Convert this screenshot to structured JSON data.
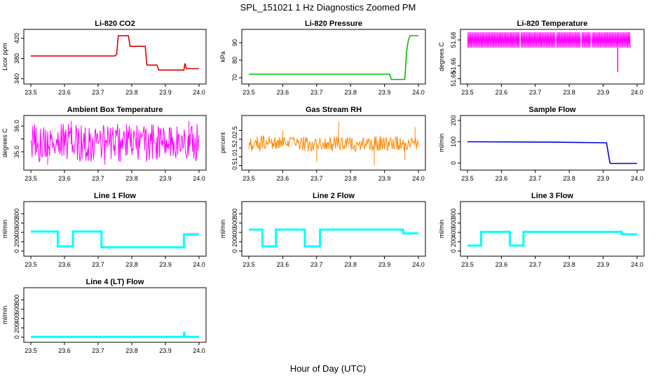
{
  "figure": {
    "title": "SPL_151021  1 Hz Diagnostics Zoomed PM",
    "xlabel": "Hour of Day (UTC)"
  },
  "chart_data": [
    {
      "type": "line",
      "title": "Li-820 CO2",
      "ylabel": "Licor ppm",
      "color": "#dd0000",
      "xlim": [
        23.5,
        24.0
      ],
      "ylim": [
        335,
        432
      ],
      "xticks": [
        "23.5",
        "23.6",
        "23.7",
        "23.8",
        "23.9",
        "24.0"
      ],
      "yticks": [
        340,
        380,
        420
      ],
      "ytick_labels": [
        "340",
        "380",
        "420"
      ],
      "series": [
        {
          "x": [
            23.5,
            23.75,
            23.755,
            23.76,
            23.79,
            23.795,
            23.84,
            23.845,
            23.875,
            23.88,
            23.955,
            23.958,
            23.962,
            24.0
          ],
          "y": [
            385,
            385,
            388,
            425,
            425,
            404,
            404,
            367,
            367,
            357,
            357,
            370,
            360,
            360
          ]
        }
      ]
    },
    {
      "type": "line",
      "title": "Li-820 Pressure",
      "ylabel": "kPa",
      "color": "#00bb00",
      "xlim": [
        23.5,
        24.0
      ],
      "ylim": [
        68,
        96
      ],
      "xticks": [
        "23.5",
        "23.6",
        "23.7",
        "23.8",
        "23.9",
        "24.0"
      ],
      "yticks": [
        70,
        80,
        90
      ],
      "ytick_labels": [
        "70",
        "80",
        "90"
      ],
      "series": [
        {
          "x": [
            23.5,
            23.915,
            23.92,
            23.96,
            23.965,
            23.97,
            23.975,
            24.0
          ],
          "y": [
            72,
            72,
            69,
            69,
            85,
            91,
            94,
            94
          ]
        }
      ]
    },
    {
      "type": "line",
      "title": "Li-820 Temperature",
      "ylabel": "degrees C",
      "color": "#ff00ff",
      "xlim": [
        23.5,
        24.0
      ],
      "ylim": [
        51.648,
        51.686
      ],
      "xticks": [
        "23.5",
        "23.6",
        "23.7",
        "23.8",
        "23.9",
        "24.0"
      ],
      "yticks": [
        51.65,
        51.66,
        51.68
      ],
      "ytick_labels": [
        "51.65",
        "51.66",
        "51.68"
      ],
      "series": [
        {
          "x": [
            23.5,
            23.94,
            23.943,
            23.946,
            23.98
          ],
          "y": [
            51.674,
            51.674,
            51.655,
            51.674,
            51.674
          ],
          "band": [
            51.674,
            51.686
          ]
        }
      ]
    },
    {
      "type": "line",
      "title": "Ambient Box Temperature",
      "ylabel": "degrees C",
      "color": "#ff00ff",
      "xlim": [
        23.5,
        24.0
      ],
      "ylim": [
        34.4,
        36.3
      ],
      "xticks": [
        "23.5",
        "23.6",
        "23.7",
        "23.8",
        "23.9",
        "24.0"
      ],
      "yticks": [
        35.0,
        35.5,
        36.0
      ],
      "ytick_labels": [
        "35.0",
        "",
        "36.0"
      ],
      "series": [
        {
          "x": [
            23.5,
            24.0
          ],
          "y": [
            35.3,
            35.4
          ],
          "band": [
            34.6,
            36.1
          ]
        }
      ]
    },
    {
      "type": "line",
      "title": "Gas Stream RH",
      "ylabel": "percent",
      "color": "#ff8800",
      "xlim": [
        23.5,
        24.0
      ],
      "ylim": [
        0.4,
        3.2
      ],
      "xticks": [
        "23.5",
        "23.6",
        "23.7",
        "23.8",
        "23.9",
        "24.0"
      ],
      "yticks": [
        0.5,
        1.0,
        1.5,
        2.0,
        2.5
      ],
      "ytick_labels": [
        "0.5",
        "1.0",
        "1.5",
        "2.0",
        "2.5"
      ],
      "series": [
        {
          "x": [
            23.5,
            24.0
          ],
          "y": [
            1.8,
            1.8
          ],
          "band": [
            1.3,
            2.2
          ]
        }
      ]
    },
    {
      "type": "line",
      "title": "Sample Flow",
      "ylabel": "ml/min",
      "color": "#0000dd",
      "xlim": [
        23.5,
        24.0
      ],
      "ylim": [
        -20,
        210
      ],
      "xticks": [
        "23.5",
        "23.6",
        "23.7",
        "23.8",
        "23.9",
        "24.0"
      ],
      "yticks": [
        0,
        100,
        200
      ],
      "ytick_labels": [
        "0",
        "100",
        "200"
      ],
      "series": [
        {
          "x": [
            23.5,
            23.75,
            23.91,
            23.92,
            23.925,
            24.0
          ],
          "y": [
            100,
            98,
            95,
            0,
            -2,
            -2
          ]
        }
      ]
    },
    {
      "type": "line",
      "title": "Line 1 Flow",
      "ylabel": "ml/min",
      "color": "#00ffff",
      "xlim": [
        23.5,
        24.0
      ],
      "ylim": [
        -50,
        1000
      ],
      "xticks": [
        "23.5",
        "23.6",
        "23.7",
        "23.8",
        "23.9",
        "24.0"
      ],
      "yticks": [
        0,
        200,
        400,
        600,
        800
      ],
      "ytick_labels": [
        "0",
        "200",
        "400",
        "600",
        "800"
      ],
      "series": [
        {
          "x": [
            23.5,
            23.58,
            23.58,
            23.625,
            23.625,
            23.71,
            23.71,
            23.955,
            23.955,
            24.0
          ],
          "y": [
            420,
            420,
            100,
            100,
            420,
            420,
            80,
            80,
            360,
            360
          ]
        }
      ]
    },
    {
      "type": "line",
      "title": "Line 2 Flow",
      "ylabel": "ml/min",
      "color": "#00ffff",
      "xlim": [
        23.5,
        24.0
      ],
      "ylim": [
        -50,
        1000
      ],
      "xticks": [
        "23.5",
        "23.6",
        "23.7",
        "23.8",
        "23.9",
        "24.0"
      ],
      "yticks": [
        0,
        200,
        400,
        600,
        800
      ],
      "ytick_labels": [
        "0",
        "200",
        "400",
        "600",
        "800"
      ],
      "series": [
        {
          "x": [
            23.5,
            23.54,
            23.54,
            23.58,
            23.58,
            23.665,
            23.665,
            23.71,
            23.71,
            23.955,
            23.955,
            24.0
          ],
          "y": [
            460,
            460,
            100,
            100,
            460,
            460,
            100,
            100,
            460,
            460,
            380,
            380
          ]
        }
      ]
    },
    {
      "type": "line",
      "title": "Line 3 Flow",
      "ylabel": "ml/min",
      "color": "#00ffff",
      "xlim": [
        23.5,
        24.0
      ],
      "ylim": [
        -50,
        1000
      ],
      "xticks": [
        "23.5",
        "23.6",
        "23.7",
        "23.8",
        "23.9",
        "24.0"
      ],
      "yticks": [
        0,
        200,
        400,
        600,
        800
      ],
      "ytick_labels": [
        "0",
        "200",
        "400",
        "600",
        "800"
      ],
      "series": [
        {
          "x": [
            23.5,
            23.5,
            23.54,
            23.54,
            23.625,
            23.625,
            23.665,
            23.665,
            23.955,
            23.955,
            24.0
          ],
          "y": [
            120,
            120,
            120,
            410,
            410,
            120,
            120,
            410,
            410,
            360,
            360
          ]
        }
      ]
    },
    {
      "type": "line",
      "title": "Line 4 (LT) Flow",
      "ylabel": "ml/min",
      "color": "#00ffff",
      "xlim": [
        23.5,
        24.0
      ],
      "ylim": [
        -50,
        1000
      ],
      "xticks": [
        "23.5",
        "23.6",
        "23.7",
        "23.8",
        "23.9",
        "24.0"
      ],
      "yticks": [
        0,
        200,
        400,
        600,
        800
      ],
      "ytick_labels": [
        "0",
        "200",
        "400",
        "600",
        "800"
      ],
      "series": [
        {
          "x": [
            23.5,
            23.955,
            23.956,
            23.957,
            23.958,
            24.0
          ],
          "y": [
            5,
            5,
            120,
            5,
            5,
            5
          ]
        }
      ]
    }
  ]
}
